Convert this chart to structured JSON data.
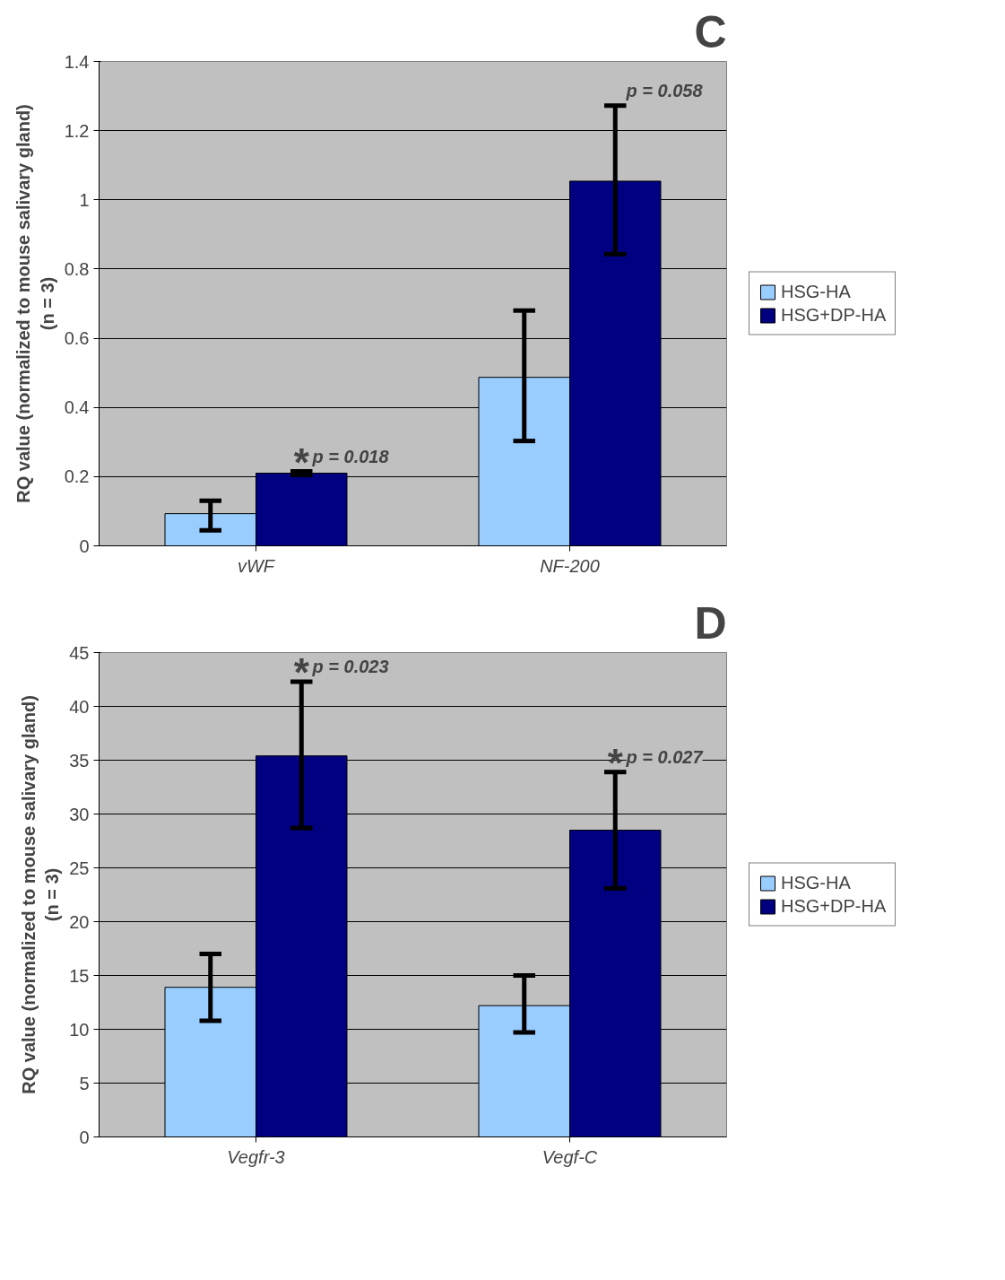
{
  "chart_data": [
    {
      "type": "bar",
      "title": "C",
      "ylabel": "RQ value (normalized to mouse salivary gland)\n(n = 3)",
      "categories": [
        "vWF",
        "NF-200"
      ],
      "series": [
        {
          "name": "HSG-HA",
          "color": "#99ccff",
          "values": [
            0.093,
            0.487
          ],
          "errors": [
            [
              0.045,
              0.13
            ],
            [
              0.303,
              0.68
            ]
          ]
        },
        {
          "name": "HSG+DP-HA",
          "color": "#000080",
          "values": [
            0.21,
            1.054
          ],
          "errors": [
            [
              0.205,
              0.215
            ],
            [
              0.843,
              1.272
            ]
          ]
        }
      ],
      "ylim": [
        0,
        1.4
      ],
      "yticks": [
        0,
        0.2,
        0.4,
        0.6,
        0.8,
        1,
        1.2,
        1.4
      ],
      "grid": "y",
      "legend": "right",
      "annotations": [
        "*",
        "p = 0.018",
        "p = 0.058"
      ]
    },
    {
      "type": "bar",
      "title": "D",
      "ylabel": "RQ value (normalized to mouse salivary gland)\n(n = 3)",
      "categories": [
        "Vegfr-3",
        "Vegf-C"
      ],
      "series": [
        {
          "name": "HSG-HA",
          "color": "#99ccff",
          "values": [
            13.9,
            12.2
          ],
          "errors": [
            [
              10.8,
              17.0
            ],
            [
              9.7,
              15.0
            ]
          ]
        },
        {
          "name": "HSG+DP-HA",
          "color": "#000080",
          "values": [
            35.4,
            28.5
          ],
          "errors": [
            [
              28.7,
              42.3
            ],
            [
              23.1,
              33.9
            ]
          ]
        }
      ],
      "ylim": [
        0,
        45
      ],
      "yticks": [
        0,
        5,
        10,
        15,
        20,
        25,
        30,
        35,
        40,
        45
      ],
      "grid": "y",
      "legend": "right",
      "annotations": [
        "*",
        "p = 0.023",
        "*",
        "p = 0.027"
      ]
    }
  ]
}
